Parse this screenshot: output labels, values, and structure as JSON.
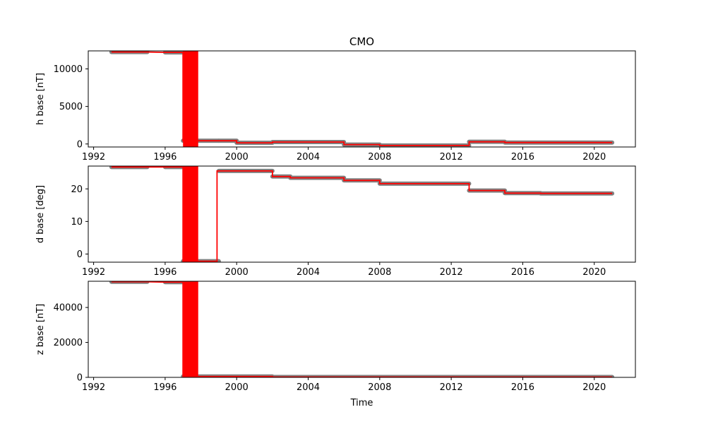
{
  "chart_data": [
    {
      "type": "line",
      "title": "CMO",
      "xlabel": "",
      "ylabel": "h base [nT]",
      "xlim": [
        1991.7,
        2022.3
      ],
      "ylim": [
        -400,
        12400
      ],
      "xticks": [
        1992,
        1996,
        2000,
        2004,
        2008,
        2012,
        2016,
        2020
      ],
      "xtick_labels": [
        "1992",
        "1996",
        "2000",
        "2004",
        "2008",
        "2012",
        "2016",
        "2020"
      ],
      "yticks": [
        0,
        5000,
        10000
      ],
      "ytick_labels": [
        "0",
        "5000",
        "10000"
      ],
      "grid": false,
      "points_color": "#808080",
      "line_color": "#ff0000",
      "points": [
        {
          "x": [
            1993.0,
            1995.0
          ],
          "y": 12250
        },
        {
          "x": [
            1996.0,
            1997.0
          ],
          "y": 12200
        },
        {
          "x": [
            1997.0,
            1999.0
          ],
          "y": 430
        },
        {
          "x": [
            1999.0,
            2000.0
          ],
          "y": 430
        },
        {
          "x": [
            2000.0,
            2002.0
          ],
          "y": 160
        },
        {
          "x": [
            2002.0,
            2006.0
          ],
          "y": 260
        },
        {
          "x": [
            2006.0,
            2008.0
          ],
          "y": -80
        },
        {
          "x": [
            2008.0,
            2013.0
          ],
          "y": -200
        },
        {
          "x": [
            2013.0,
            2015.0
          ],
          "y": 290
        },
        {
          "x": [
            2015.0,
            2021.0
          ],
          "y": 190
        }
      ],
      "line": [
        [
          1993.0,
          12250
        ],
        [
          1995.0,
          12250
        ],
        [
          1996.0,
          12200
        ],
        [
          1997.0,
          12200
        ],
        [
          1997.0,
          430
        ],
        [
          2000.0,
          430
        ],
        [
          2000.0,
          160
        ],
        [
          2002.0,
          160
        ],
        [
          2002.0,
          260
        ],
        [
          2006.0,
          260
        ],
        [
          2006.0,
          -80
        ],
        [
          2008.0,
          -80
        ],
        [
          2008.0,
          -200
        ],
        [
          2013.0,
          -200
        ],
        [
          2013.0,
          290
        ],
        [
          2015.0,
          290
        ],
        [
          2015.0,
          190
        ],
        [
          2021.0,
          190
        ]
      ],
      "fill_band": {
        "x": [
          1997.0,
          1997.85
        ],
        "y": [
          -400,
          12400
        ]
      }
    },
    {
      "type": "line",
      "title": "",
      "xlabel": "",
      "ylabel": "d base [deg]",
      "xlim": [
        1991.7,
        2022.3
      ],
      "ylim": [
        -2.5,
        27.0
      ],
      "xticks": [
        1992,
        1996,
        2000,
        2004,
        2008,
        2012,
        2016,
        2020
      ],
      "xtick_labels": [
        "1992",
        "1996",
        "2000",
        "2004",
        "2008",
        "2012",
        "2016",
        "2020"
      ],
      "yticks": [
        0,
        10,
        20
      ],
      "ytick_labels": [
        "0",
        "10",
        "20"
      ],
      "grid": false,
      "points_color": "#808080",
      "line_color": "#ff0000",
      "points": [
        {
          "x": [
            1993.0,
            1995.0
          ],
          "y": 26.7
        },
        {
          "x": [
            1996.0,
            1997.0
          ],
          "y": 26.7
        },
        {
          "x": [
            1997.0,
            1999.0
          ],
          "y": -2.2
        },
        {
          "x": [
            1999.0,
            2002.0
          ],
          "y": 25.5
        },
        {
          "x": [
            2002.0,
            2003.0
          ],
          "y": 23.8
        },
        {
          "x": [
            2003.0,
            2006.0
          ],
          "y": 23.4
        },
        {
          "x": [
            2006.0,
            2008.0
          ],
          "y": 22.6
        },
        {
          "x": [
            2008.0,
            2013.0
          ],
          "y": 21.6
        },
        {
          "x": [
            2013.0,
            2015.0
          ],
          "y": 19.5
        },
        {
          "x": [
            2015.0,
            2017.0
          ],
          "y": 18.7
        },
        {
          "x": [
            2017.0,
            2021.0
          ],
          "y": 18.6
        }
      ],
      "line": [
        [
          1993.0,
          26.7
        ],
        [
          1995.0,
          26.7
        ],
        [
          1996.0,
          26.7
        ],
        [
          1997.0,
          26.7
        ],
        [
          1997.0,
          -2.2
        ],
        [
          1998.9,
          -2.2
        ],
        [
          1998.9,
          25.5
        ],
        [
          2002.0,
          25.5
        ],
        [
          2002.0,
          23.8
        ],
        [
          2003.0,
          23.8
        ],
        [
          2003.0,
          23.4
        ],
        [
          2006.0,
          23.4
        ],
        [
          2006.0,
          22.6
        ],
        [
          2008.0,
          22.6
        ],
        [
          2008.0,
          21.6
        ],
        [
          2013.0,
          21.6
        ],
        [
          2013.0,
          19.5
        ],
        [
          2015.0,
          19.5
        ],
        [
          2015.0,
          18.7
        ],
        [
          2017.0,
          18.7
        ],
        [
          2017.0,
          18.6
        ],
        [
          2021.0,
          18.6
        ]
      ],
      "fill_band": {
        "x": [
          1997.0,
          1997.85
        ],
        "y": [
          -2.5,
          27.0
        ]
      }
    },
    {
      "type": "line",
      "title": "",
      "xlabel": "Time",
      "ylabel": "z base [nT]",
      "xlim": [
        1991.7,
        2022.3
      ],
      "ylim": [
        0,
        55000
      ],
      "xticks": [
        1992,
        1996,
        2000,
        2004,
        2008,
        2012,
        2016,
        2020
      ],
      "xtick_labels": [
        "1992",
        "1996",
        "2000",
        "2004",
        "2008",
        "2012",
        "2016",
        "2020"
      ],
      "yticks": [
        0,
        20000,
        40000
      ],
      "ytick_labels": [
        "0",
        "20000",
        "40000"
      ],
      "grid": false,
      "points_color": "#808080",
      "line_color": "#ff0000",
      "points": [
        {
          "x": [
            1993.0,
            1995.0
          ],
          "y": 54700
        },
        {
          "x": [
            1996.0,
            1997.0
          ],
          "y": 54500
        },
        {
          "x": [
            1997.0,
            2002.0
          ],
          "y": 500
        },
        {
          "x": [
            2002.0,
            2021.0
          ],
          "y": 200
        }
      ],
      "line": [
        [
          1993.0,
          54700
        ],
        [
          1995.0,
          54700
        ],
        [
          1996.0,
          54500
        ],
        [
          1997.0,
          54500
        ],
        [
          1997.0,
          500
        ],
        [
          2002.0,
          500
        ],
        [
          2002.0,
          200
        ],
        [
          2021.0,
          200
        ]
      ],
      "fill_band": {
        "x": [
          1997.0,
          1997.85
        ],
        "y": [
          0,
          55000
        ]
      }
    }
  ]
}
